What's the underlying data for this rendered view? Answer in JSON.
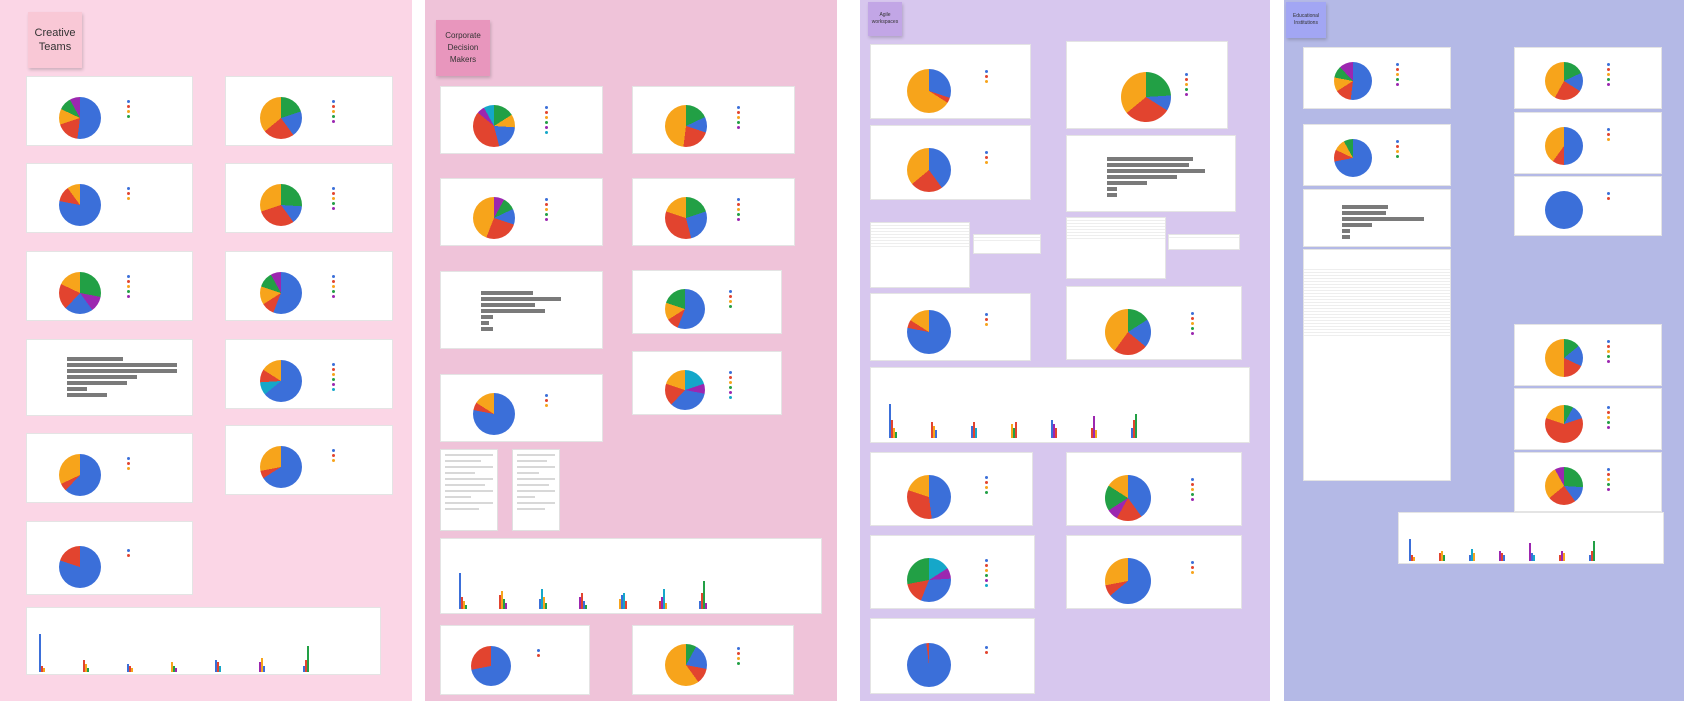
{
  "colors": {
    "col1": "#fbd6e6",
    "col2": "#efc3d9",
    "col3": "#d7c7ee",
    "col4": "#b4b9e6",
    "blue": "#3b6fd9",
    "red": "#e2442f",
    "orange": "#f7a41b",
    "green": "#22a045",
    "purple": "#9c27b0",
    "teal": "#15a7c9",
    "grey": "#7a7a7a"
  },
  "groups": {
    "creative": "Creative Teams",
    "corporate": "Corporate Decision Makers",
    "agile": "Agile workspaces",
    "educational": "Educational Institutions"
  }
}
